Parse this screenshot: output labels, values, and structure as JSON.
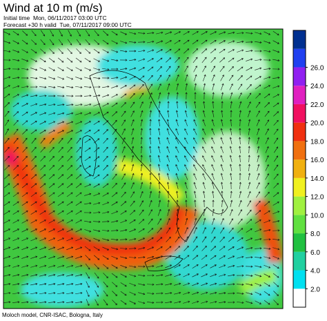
{
  "header": {
    "title": "Wind at 10 m (m/s)",
    "initial_time": "Initial time  Mon, 06/11/2017 03:00 UTC",
    "forecast": "Forecast +30 h valid  Tue, 07/11/2017 09:00 UTC"
  },
  "colorbar": {
    "labels": [
      "2.0",
      "4.0",
      "6.0",
      "8.0",
      "10.0",
      "12.0",
      "14.0",
      "16.0",
      "18.0",
      "20.0",
      "22.0",
      "24.0",
      "26.0"
    ],
    "colors": [
      "#ffffff",
      "#00e0f0",
      "#20d0a0",
      "#20c040",
      "#60e040",
      "#a0f040",
      "#f0f020",
      "#f0b010",
      "#f07010",
      "#f03010",
      "#f01060",
      "#e020c0",
      "#9020f0",
      "#2040f0",
      "#003090"
    ]
  },
  "footer": "Moloch model, CNR-ISAC, Bologna, Italy"
}
